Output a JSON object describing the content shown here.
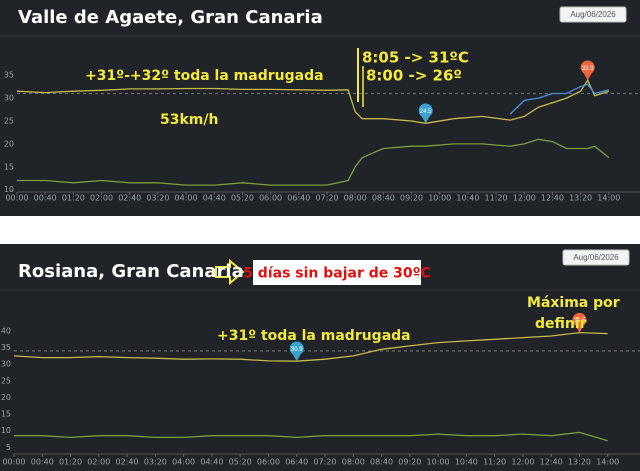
{
  "chart_data": [
    {
      "type": "line",
      "title": "Valle de Agaete, Gran Canaria",
      "date": "Aug/06/2026",
      "x": [
        0,
        40,
        80,
        120,
        160,
        200,
        240,
        280,
        320,
        360,
        400,
        440,
        470,
        480,
        490,
        520,
        560,
        580,
        620,
        660,
        700,
        720,
        740,
        760,
        780,
        800,
        810,
        820,
        840
      ],
      "series": [
        {
          "color": "#c4b94c",
          "values": [
            31.5,
            31.2,
            31.5,
            31.7,
            32,
            32,
            32.1,
            32.1,
            31.9,
            31.9,
            31.8,
            31.7,
            31.8,
            27,
            25.5,
            25.5,
            25,
            24.5,
            25.5,
            26,
            25.2,
            26,
            28,
            29,
            30,
            31.5,
            33.9,
            30.5,
            31.5
          ]
        },
        {
          "color": "#4a8fe0",
          "values": [
            null,
            null,
            null,
            null,
            null,
            null,
            null,
            null,
            null,
            null,
            null,
            null,
            null,
            null,
            null,
            null,
            null,
            null,
            null,
            null,
            26.5,
            29.5,
            30,
            31,
            31,
            32.5,
            33,
            31,
            31.8
          ]
        },
        {
          "color": "#7f9c3c",
          "values": [
            12,
            12,
            11.5,
            12,
            11.5,
            11.5,
            11,
            11,
            11.5,
            11,
            11,
            11,
            12,
            15,
            17,
            19,
            19.5,
            19.5,
            20,
            20,
            19.5,
            20,
            21,
            20.5,
            19,
            19,
            19,
            19.5,
            17
          ]
        }
      ],
      "hline": 31,
      "pins": [
        {
          "x": 580,
          "value": 24.5,
          "color": "#3aa3d0"
        },
        {
          "x": 810,
          "value": 33.9,
          "color": "#f0643c"
        }
      ],
      "xlim": [
        0,
        880
      ],
      "xticks": [
        {
          "value": 0,
          "label": "00:00"
        },
        {
          "value": 40,
          "label": "00:40"
        },
        {
          "value": 80,
          "label": "01:20"
        },
        {
          "value": 120,
          "label": "02:00"
        },
        {
          "value": 160,
          "label": "02:40"
        },
        {
          "value": 200,
          "label": "03:20"
        },
        {
          "value": 240,
          "label": "04:00"
        },
        {
          "value": 280,
          "label": "04:40"
        },
        {
          "value": 320,
          "label": "05:20"
        },
        {
          "value": 360,
          "label": "06:00"
        },
        {
          "value": 400,
          "label": "06:40"
        },
        {
          "value": 440,
          "label": "07:20"
        },
        {
          "value": 480,
          "label": "08:00"
        },
        {
          "value": 520,
          "label": "08:40"
        },
        {
          "value": 560,
          "label": "09:20"
        },
        {
          "value": 600,
          "label": "10:00"
        },
        {
          "value": 640,
          "label": "10:40"
        },
        {
          "value": 680,
          "label": "11:20"
        },
        {
          "value": 720,
          "label": "12:00"
        },
        {
          "value": 760,
          "label": "12:40"
        },
        {
          "value": 800,
          "label": "13:20"
        },
        {
          "value": 840,
          "label": "14:00"
        }
      ],
      "ylim": [
        9.5,
        37
      ],
      "yticks": [
        10,
        15,
        20,
        25,
        30,
        35
      ],
      "grid": false,
      "annotations": [
        "+31º-+32º toda la madrugada",
        "53km/h",
        "8:05 -> 31ºC",
        "8:00 -> 26º"
      ]
    },
    {
      "type": "line",
      "title": "Rosiana, Gran Canaria",
      "subtitle": "5 días sin bajar de 30ºC",
      "date": "Aug/06/2026",
      "x": [
        0,
        40,
        80,
        120,
        160,
        200,
        240,
        280,
        320,
        360,
        400,
        440,
        480,
        520,
        560,
        600,
        640,
        680,
        720,
        760,
        800,
        840
      ],
      "series": [
        {
          "color": "#c4b94c",
          "values": [
            32.5,
            32,
            32,
            32.3,
            32,
            31.8,
            31.5,
            31.6,
            31.5,
            31,
            30.9,
            31.5,
            32.5,
            34.5,
            35.5,
            36.5,
            37,
            37.5,
            38,
            38.5,
            39.5,
            39.2
          ]
        },
        {
          "color": "#7f9c3c",
          "values": [
            8.5,
            8.5,
            8,
            8.5,
            8.5,
            8,
            8,
            8.5,
            8.5,
            8.5,
            8,
            8.5,
            8.5,
            8.5,
            8.5,
            9,
            8.5,
            8.5,
            9,
            8.5,
            9.5,
            7
          ]
        }
      ],
      "hline": 34,
      "pins": [
        {
          "x": 400,
          "value": 30.9,
          "color": "#3aa3d0"
        },
        {
          "x": 800,
          "value": 39.5,
          "color": "#f0643c"
        }
      ],
      "xlim": [
        0,
        880
      ],
      "xticks": [
        {
          "value": 0,
          "label": "00:00"
        },
        {
          "value": 40,
          "label": "00:40"
        },
        {
          "value": 80,
          "label": "01:20"
        },
        {
          "value": 120,
          "label": "02:00"
        },
        {
          "value": 160,
          "label": "02:40"
        },
        {
          "value": 200,
          "label": "03:20"
        },
        {
          "value": 240,
          "label": "04:00"
        },
        {
          "value": 280,
          "label": "04:40"
        },
        {
          "value": 320,
          "label": "05:20"
        },
        {
          "value": 360,
          "label": "06:00"
        },
        {
          "value": 400,
          "label": "06:40"
        },
        {
          "value": 440,
          "label": "07:20"
        },
        {
          "value": 480,
          "label": "08:00"
        },
        {
          "value": 520,
          "label": "08:40"
        },
        {
          "value": 560,
          "label": "09:20"
        },
        {
          "value": 600,
          "label": "10:00"
        },
        {
          "value": 640,
          "label": "10:40"
        },
        {
          "value": 680,
          "label": "11:20"
        },
        {
          "value": 720,
          "label": "12:00"
        },
        {
          "value": 760,
          "label": "12:40"
        },
        {
          "value": 800,
          "label": "13:20"
        },
        {
          "value": 840,
          "label": "14:00"
        }
      ],
      "ylim": [
        3,
        43
      ],
      "yticks": [
        5,
        10,
        15,
        20,
        25,
        30,
        35,
        40
      ],
      "grid": false,
      "annotations": [
        "+31º toda la madrugada",
        "Máxima por",
        "definir"
      ]
    }
  ]
}
